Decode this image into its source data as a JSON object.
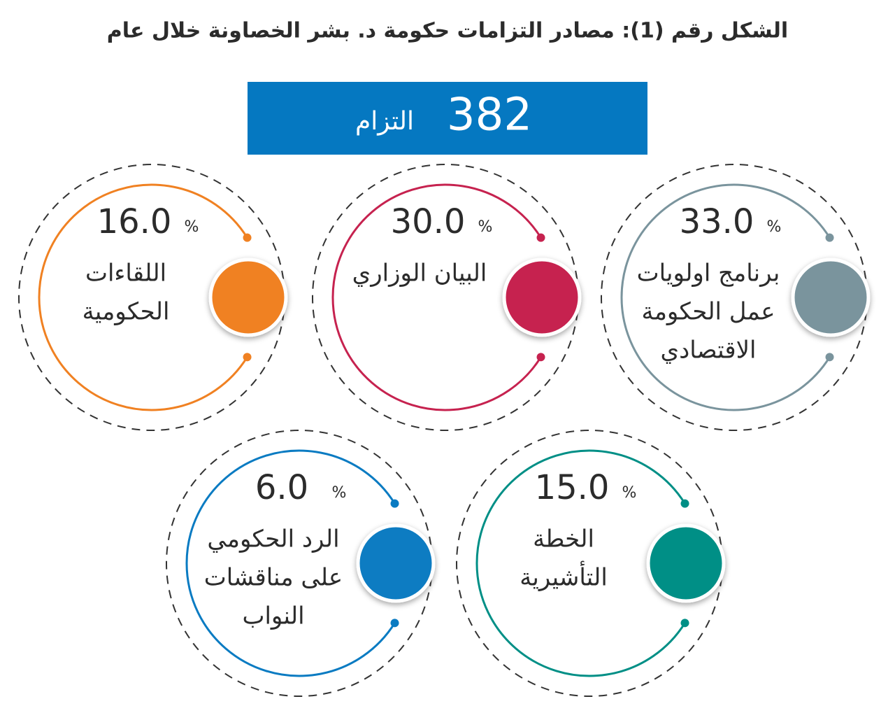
{
  "title": "الشكل رقم (1): مصادر التزامات حكومة د. بشر الخصاونة خلال عام",
  "total": {
    "number": "382",
    "label": "التزام",
    "color": "#0578c1"
  },
  "percent_sign": "%",
  "items": [
    {
      "value": "33.0",
      "label_lines": [
        "برنامج اولويات",
        "عمل الحكومة",
        "الاقتصادي"
      ],
      "color": "#7a949d"
    },
    {
      "value": "30.0",
      "label_lines": [
        "البيان الوزاري"
      ],
      "color": "#c6224f"
    },
    {
      "value": "16.0",
      "label_lines": [
        "اللقاءات",
        "الحكومية"
      ],
      "color": "#f08122"
    },
    {
      "value": "15.0",
      "label_lines": [
        "الخطة",
        "التأشيرية"
      ],
      "color": "#008f86"
    },
    {
      "value": "6.0",
      "label_lines": [
        "الرد الحكومي",
        "على مناقشات",
        "النواب"
      ],
      "color": "#0a7bc2"
    }
  ]
}
